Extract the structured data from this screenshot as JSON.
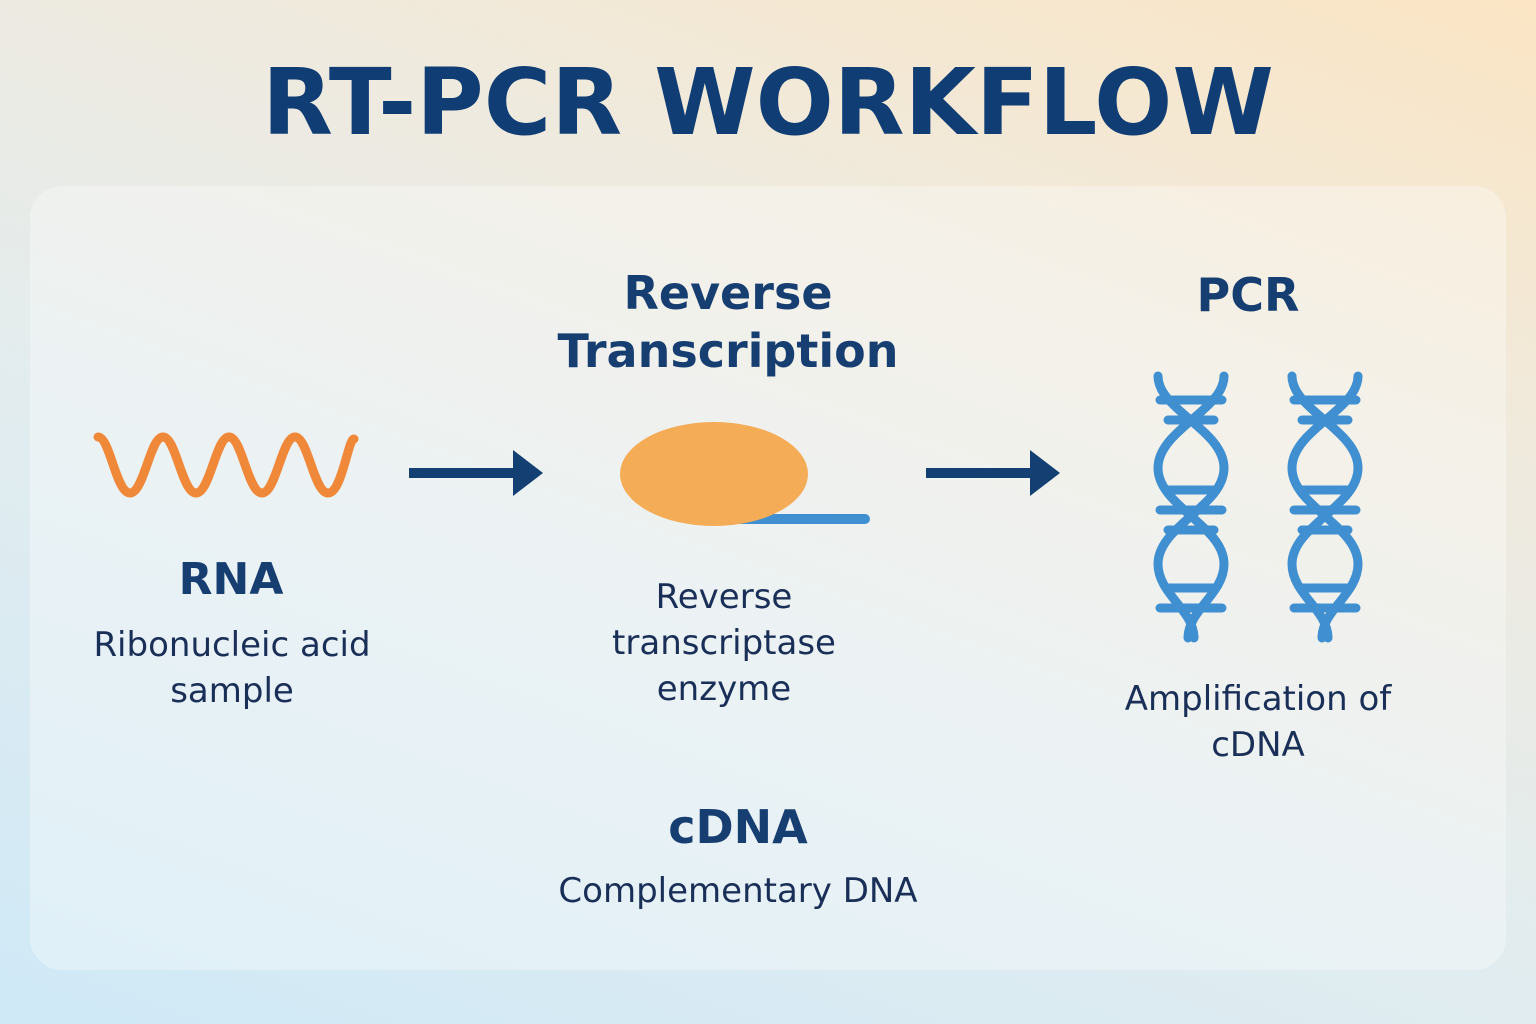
{
  "title": "RT-PCR WORKFLOW",
  "steps": [
    {
      "heading": "RNA",
      "description": "Ribonucleic acid sample",
      "icon": "rna-wave-icon"
    },
    {
      "heading": "Reverse Transcription",
      "description": "Reverse transcriptase enzyme",
      "icon": "enzyme-icon"
    },
    {
      "heading": "PCR",
      "description": "Amplification of cDNA",
      "icon": "dna-double-helix-icon"
    }
  ],
  "product": {
    "heading": "cDNA",
    "description": "Complementary DNA"
  },
  "colors": {
    "title": "#103d74",
    "text": "#173e71",
    "rna": "#f0883a",
    "enzyme": "#f5ac57",
    "dna": "#3f8fd1",
    "arrow": "#143f73"
  }
}
